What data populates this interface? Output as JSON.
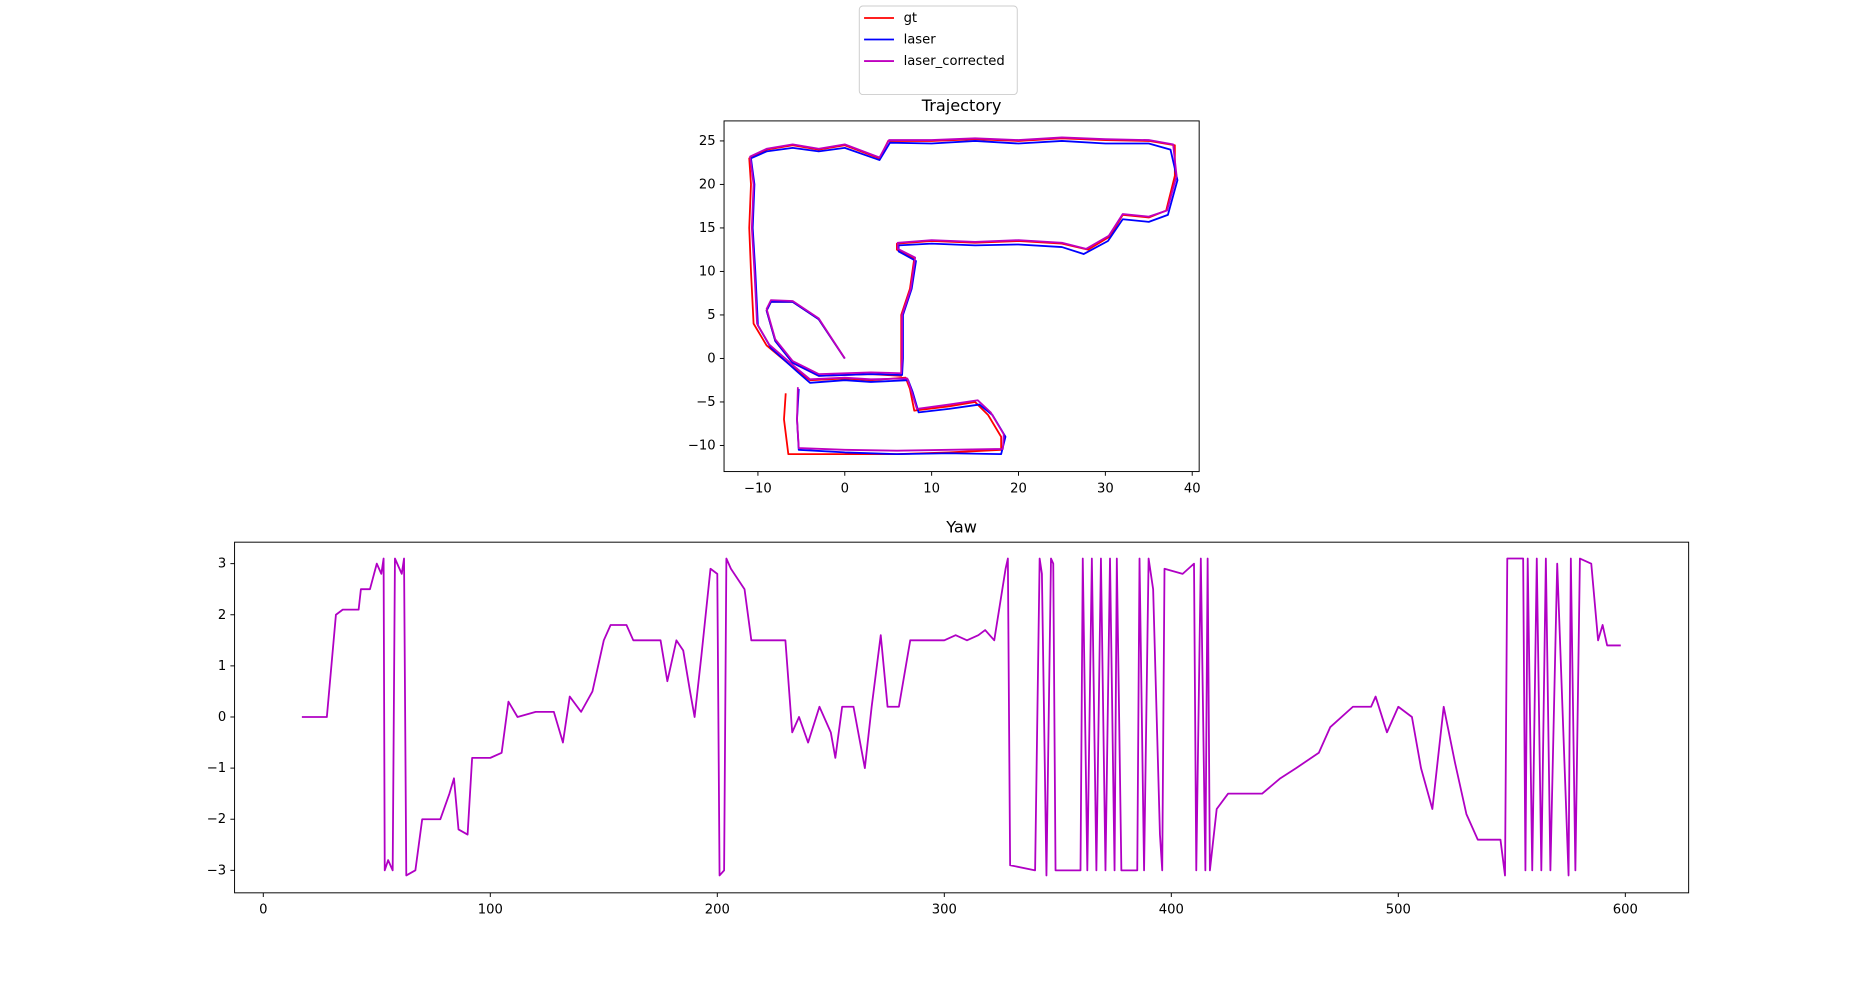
{
  "chart_data": [
    {
      "type": "line",
      "title": "Trajectory",
      "legend": "top",
      "xlim": [
        -13.9,
        40.8
      ],
      "ylim": [
        -13.0,
        27.3
      ],
      "xticks": [
        {
          "value": -10,
          "label": "−10"
        },
        0,
        10,
        20,
        30,
        40
      ],
      "yticks": [
        {
          "value": -10,
          "label": "−10"
        },
        {
          "value": -5,
          "label": "−5"
        },
        0,
        5,
        10,
        15,
        20,
        25
      ],
      "series": [
        {
          "name": "gt",
          "color": "#ff0000",
          "x": [
            -6.8,
            -7,
            -6.5,
            0,
            6,
            12,
            18,
            18,
            16.5,
            15,
            12,
            8,
            7.5,
            7,
            3,
            0,
            -4,
            -6,
            -9,
            -10.5,
            -10.8,
            -11,
            -10.8,
            -11,
            -9,
            -6,
            -3,
            0,
            4,
            5,
            10,
            15,
            20,
            25,
            30,
            35,
            38,
            38,
            37,
            35,
            32,
            30.5,
            28,
            25,
            20,
            15,
            10,
            6,
            6,
            8,
            7.5,
            6.5,
            6.5,
            6.5,
            3,
            -3,
            -6,
            -8,
            -9,
            -8.5,
            -6,
            -3,
            0
          ],
          "values": [
            -4,
            -7,
            -11,
            -11,
            -11,
            -10.8,
            -10.5,
            -9,
            -6.5,
            -5,
            -5.5,
            -6,
            -3.5,
            -2.2,
            -2.5,
            -2.3,
            -2.5,
            -1,
            1.5,
            4,
            10,
            15,
            20,
            23,
            24,
            24.5,
            24,
            24.5,
            23,
            25,
            25,
            25.2,
            25,
            25.3,
            25.1,
            25,
            24.5,
            21,
            17,
            16.2,
            16.5,
            14,
            12.5,
            13.2,
            13.5,
            13.3,
            13.5,
            13.2,
            12.5,
            11.5,
            8,
            5,
            0,
            -2,
            -1.8,
            -2,
            -0.5,
            2,
            5.5,
            6.5,
            6.5,
            4.5,
            0
          ]
        },
        {
          "name": "laser",
          "color": "#0000ff",
          "x": [
            -5.3,
            -5.5,
            -5.3,
            0,
            6,
            12,
            18,
            18.5,
            17,
            15.5,
            12,
            8.5,
            7.8,
            7.3,
            3,
            0,
            -4,
            -5.5,
            -8.5,
            -10,
            -10.3,
            -10.6,
            -10.4,
            -10.8,
            -9,
            -6,
            -3,
            0,
            4,
            5.2,
            10,
            15,
            20,
            25,
            30,
            35,
            37.5,
            38.3,
            37.2,
            35,
            32,
            30.3,
            27.5,
            25,
            20,
            15,
            10,
            6.2,
            6.2,
            8.2,
            7.7,
            6.7,
            6.7,
            6.6,
            3,
            -3,
            -6,
            -8,
            -9,
            -8.5,
            -6,
            -3,
            0
          ],
          "values": [
            -3.5,
            -7,
            -10.5,
            -10.8,
            -11,
            -10.9,
            -11,
            -9,
            -6.5,
            -5.3,
            -5.8,
            -6.2,
            -3.8,
            -2.5,
            -2.7,
            -2.5,
            -2.8,
            -1.5,
            1.2,
            3.8,
            10,
            15,
            20,
            23,
            23.8,
            24.2,
            23.8,
            24.2,
            22.8,
            24.8,
            24.7,
            25,
            24.7,
            25,
            24.7,
            24.7,
            24,
            20.5,
            16.5,
            15.7,
            16,
            13.5,
            12,
            12.8,
            13.1,
            13,
            13.2,
            13,
            12.3,
            11.2,
            8,
            5,
            0,
            -1.9,
            -1.8,
            -2,
            -0.5,
            2,
            5.5,
            6.5,
            6.5,
            4.5,
            0
          ]
        },
        {
          "name": "laser_corrected",
          "color": "#bf00bf",
          "x": [
            -5.4,
            -5.5,
            -5.3,
            0,
            6,
            12,
            18.2,
            18.3,
            16.8,
            15.3,
            12,
            8.3,
            7.6,
            7.2,
            3,
            0,
            -4,
            -5.7,
            -8.7,
            -10.1,
            -10.4,
            -10.7,
            -10.5,
            -10.9,
            -9,
            -6,
            -3,
            0,
            4,
            5.1,
            10,
            15,
            20,
            25,
            30,
            35,
            37.8,
            38.2,
            37.1,
            35,
            32,
            30.4,
            27.8,
            25,
            20,
            15,
            10,
            6.1,
            6.1,
            8.1,
            7.6,
            6.6,
            6.6,
            6.5,
            3,
            -3,
            -6,
            -8,
            -9,
            -8.5,
            -6,
            -3,
            0
          ],
          "values": [
            -3.3,
            -7,
            -10.3,
            -10.5,
            -10.6,
            -10.5,
            -10.4,
            -8.7,
            -6.2,
            -4.8,
            -5.3,
            -5.8,
            -3.5,
            -2.3,
            -2.4,
            -2.2,
            -2.4,
            -1,
            1.6,
            4,
            10,
            15,
            20,
            23.2,
            24.1,
            24.6,
            24.1,
            24.6,
            23.1,
            25.1,
            25.1,
            25.3,
            25.1,
            25.4,
            25.2,
            25.1,
            24.6,
            21,
            17,
            16.3,
            16.6,
            14.1,
            12.6,
            13.3,
            13.6,
            13.4,
            13.6,
            13.3,
            12.6,
            11.6,
            8,
            5,
            0,
            -1.7,
            -1.6,
            -1.8,
            -0.3,
            2.2,
            5.7,
            6.7,
            6.6,
            4.6,
            0
          ]
        }
      ]
    },
    {
      "type": "line",
      "title": "Yaw",
      "xlim": [
        -12.65,
        627.9
      ],
      "ylim": [
        -3.44,
        3.42
      ],
      "xticks": [
        0,
        100,
        200,
        300,
        400,
        500,
        600
      ],
      "yticks": [
        {
          "value": -3,
          "label": "−3"
        },
        {
          "value": -2,
          "label": "−2"
        },
        {
          "value": -1,
          "label": "−1"
        },
        0,
        1,
        2,
        3
      ],
      "x": [
        17,
        28,
        32,
        35,
        42,
        43,
        47,
        50,
        52,
        53,
        53.5,
        55,
        57,
        58,
        60,
        61,
        62,
        63,
        67,
        70,
        78,
        82,
        84,
        86,
        90,
        92,
        100,
        105,
        108,
        112,
        120,
        128,
        132,
        135,
        140,
        145,
        150,
        153,
        160,
        163,
        168,
        175,
        178,
        182,
        185,
        188,
        190,
        193,
        197,
        200,
        201,
        203,
        204,
        206,
        212,
        215,
        220,
        225,
        230,
        233,
        236,
        240,
        245,
        250,
        252,
        255,
        260,
        265,
        268,
        272,
        275,
        280,
        285,
        290,
        295,
        300,
        305,
        310,
        315,
        318,
        322,
        327,
        328,
        329,
        340,
        342,
        343,
        345,
        347,
        348,
        349,
        360,
        361,
        363,
        365,
        367,
        369,
        371,
        373,
        375,
        376,
        378,
        385,
        386,
        388,
        390,
        392,
        395,
        396,
        397,
        405,
        410,
        411,
        413,
        415,
        416,
        417,
        420,
        425,
        430,
        440,
        448,
        455,
        465,
        470,
        480,
        488,
        490,
        495,
        500,
        506,
        510,
        515,
        520,
        525,
        530,
        535,
        545,
        547,
        548,
        555,
        556,
        557,
        559,
        561,
        563,
        565,
        567,
        570,
        575,
        576,
        578,
        580,
        585,
        588,
        590,
        592,
        598
      ],
      "series": [
        {
          "color": "#b000c4",
          "values": [
            0,
            0,
            2,
            2.1,
            2.1,
            2.5,
            2.5,
            3,
            2.8,
            3.1,
            -3,
            -2.8,
            -3,
            3.1,
            2.9,
            2.8,
            3.1,
            -3.1,
            -3,
            -2,
            -2,
            -1.5,
            -1.2,
            -2.2,
            -2.3,
            -0.8,
            -0.8,
            -0.7,
            0.3,
            0,
            0.1,
            0.1,
            -0.5,
            0.4,
            0.1,
            0.5,
            1.5,
            1.8,
            1.8,
            1.5,
            1.5,
            1.5,
            0.7,
            1.5,
            1.3,
            0.5,
            0,
            1.2,
            2.9,
            2.8,
            -3.1,
            -3,
            3.1,
            2.9,
            2.5,
            1.5,
            1.5,
            1.5,
            1.5,
            -0.3,
            0,
            -0.5,
            0.2,
            -0.3,
            -0.8,
            0.2,
            0.2,
            -1,
            0.2,
            1.6,
            0.2,
            0.2,
            1.5,
            1.5,
            1.5,
            1.5,
            1.6,
            1.5,
            1.6,
            1.7,
            1.5,
            2.9,
            3.1,
            -2.9,
            -3,
            3.1,
            2.8,
            -3.1,
            3.1,
            3,
            -3,
            -3,
            3.1,
            -3,
            3.1,
            -3,
            3.1,
            -3,
            3.1,
            -3,
            3.1,
            -3,
            -3,
            3.1,
            -3,
            3.1,
            2.5,
            -2.3,
            -3,
            2.9,
            2.8,
            3,
            -3,
            3.1,
            -3,
            3.1,
            -3,
            -1.8,
            -1.5,
            -1.5,
            -1.5,
            -1.2,
            -1,
            -0.7,
            -0.2,
            0.2,
            0.2,
            0.4,
            -0.3,
            0.2,
            0,
            -1,
            -1.8,
            0.2,
            -0.9,
            -1.9,
            -2.4,
            -2.4,
            -3.1,
            3.1,
            3.1,
            -3,
            3.1,
            -3,
            3.1,
            -3,
            3.1,
            -3,
            3,
            -3.1,
            3.1,
            -3,
            3.1,
            3,
            1.5,
            1.8,
            1.4,
            1.4
          ]
        }
      ]
    }
  ]
}
